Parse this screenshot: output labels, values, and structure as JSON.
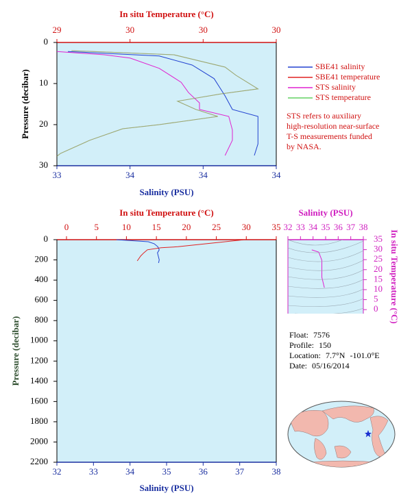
{
  "chart_data": [
    {
      "type": "line",
      "x2label": "In situ Temperature (°C)",
      "xlabel": "Salinity (PSU)",
      "ylabel": "Pressure (decibar)",
      "xlim": [
        33.4,
        34
      ],
      "xticks": [
        {
          "value": 33.4,
          "label": "33"
        },
        {
          "value": 33.6,
          "label": "34"
        },
        {
          "value": 33.8,
          "label": "34"
        },
        34
      ],
      "x2lim": [
        29.4,
        30
      ],
      "x2ticks": [
        {
          "value": 29.4,
          "label": "29"
        },
        {
          "value": 29.6,
          "label": "30"
        },
        {
          "value": 29.8,
          "label": "30"
        },
        30
      ],
      "ylim": [
        0,
        30
      ],
      "yticks": [
        0,
        10,
        20,
        30
      ],
      "invert_y": true,
      "background": "#d2eff9",
      "series": [
        {
          "name": "SBE41 salinity",
          "color": "#2040d0",
          "x": [
            33.43,
            33.68,
            33.77,
            33.83,
            33.86,
            33.88,
            33.95,
            33.95,
            33.95,
            33.94
          ],
          "y": [
            2.2,
            3.3,
            5.5,
            8.8,
            13,
            16.3,
            18,
            20.5,
            24.7,
            27.5
          ]
        },
        {
          "name": "SBE41 temperature",
          "color": "#e02020",
          "axis": "x2",
          "x": [
            29.44,
            29.72,
            29.86,
            29.89,
            29.95,
            29.85,
            29.73,
            29.78,
            29.84,
            29.68,
            29.58,
            29.49,
            29.41,
            29.4
          ],
          "y": [
            2,
            3,
            6,
            8,
            11.3,
            12.5,
            14.3,
            16.3,
            18,
            20,
            21,
            23.8,
            27,
            27.7
          ]
        },
        {
          "name": "STS salinity",
          "color": "#e020d0",
          "x": [
            33.4,
            33.53,
            33.6,
            33.68,
            33.74,
            33.76,
            33.79,
            33.79,
            33.87,
            33.88,
            33.88,
            33.86
          ],
          "y": [
            2.2,
            3,
            3.8,
            6.3,
            9.7,
            12.2,
            14.7,
            16.3,
            18,
            21.3,
            23.8,
            27.5
          ]
        },
        {
          "name": "STS temperature",
          "color": "#60d060",
          "axis": "x2",
          "x": [
            29.44,
            29.72,
            29.86,
            29.89,
            29.95,
            29.85,
            29.73,
            29.78,
            29.84,
            29.68,
            29.58,
            29.49,
            29.41,
            29.4
          ],
          "y": [
            2,
            3,
            6,
            8,
            11.3,
            12.5,
            14.3,
            16.3,
            18,
            20,
            21,
            23.8,
            27,
            27.7
          ]
        }
      ],
      "note": [
        "STS refers to auxiliary",
        "high-resolution near-surface",
        "T-S measurements funded",
        "by NASA."
      ]
    },
    {
      "type": "line",
      "x2label": "In situ Temperature (°C)",
      "xlabel": "Salinity (PSU)",
      "ylabel": "Pressure (decibar)",
      "xlim": [
        32,
        38
      ],
      "xticks": [
        32,
        33,
        34,
        35,
        36,
        37,
        38
      ],
      "x2lim": [
        -1.6,
        35
      ],
      "x2ticks": [
        0,
        5,
        10,
        15,
        20,
        25,
        30,
        35
      ],
      "ylim": [
        0,
        2200
      ],
      "yticks": [
        0,
        200,
        400,
        600,
        800,
        1000,
        1200,
        1400,
        1600,
        1800,
        2000,
        2200
      ],
      "invert_y": true,
      "background": "#d2eff9",
      "series": [
        {
          "color": "#2040d0",
          "x": [
            33.63,
            34.5,
            34.66,
            34.76,
            34.8,
            34.75,
            34.8,
            34.78
          ],
          "y": [
            0,
            20,
            40,
            70,
            100,
            130,
            200,
            230
          ]
        },
        {
          "color": "#e02020",
          "axis": "x2",
          "x": [
            29.5,
            28.9,
            18.6,
            15.8,
            13.5,
            12.9,
            12.4,
            11.8
          ],
          "y": [
            2,
            5,
            70,
            80,
            100,
            130,
            160,
            210
          ]
        }
      ]
    },
    {
      "type": "line",
      "title": "Salinity (PSU)",
      "ylabel": "In situ Temperature (°C)",
      "xlim": [
        32,
        38
      ],
      "xticks": [
        32,
        33,
        34,
        35,
        36,
        37,
        38
      ],
      "xaxis_side": "top",
      "ylim": [
        -2,
        35
      ],
      "yticks": [
        0,
        5,
        10,
        15,
        20,
        25,
        30,
        35
      ],
      "yaxis_side": "right",
      "background": "#d2eff9",
      "series": [
        {
          "color": "#e020d0",
          "x": [
            33.9,
            34.45,
            34.7,
            34.7,
            34.9
          ],
          "y": [
            29.9,
            28.8,
            24.7,
            16.2,
            11
          ]
        }
      ]
    }
  ],
  "float_info": [
    "Float: 7576",
    "Profile: 150",
    "Location: 7.7°N -101.0°E",
    "Date: 05/16/2014"
  ]
}
